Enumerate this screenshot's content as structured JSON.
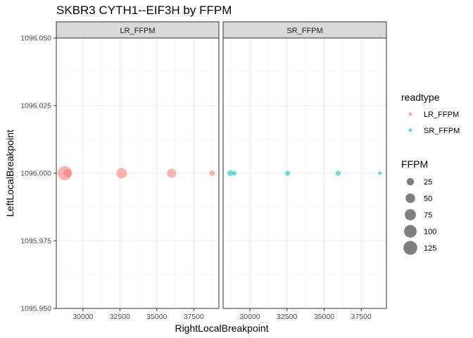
{
  "chart_data": {
    "type": "scatter",
    "title": "SKBR3 CYTH1--EIF3H by FFPM",
    "xlabel": "RightLocalBreakpoint",
    "ylabel": "LeftLocalBreakpoint",
    "xlim": [
      28200,
      39200
    ],
    "ylim": [
      1095.95,
      1096.05
    ],
    "x_ticks": [
      30000,
      32500,
      35000,
      37500
    ],
    "x_tick_labels": [
      "30000",
      "32500",
      "35000",
      "37500"
    ],
    "y_ticks": [
      1095.95,
      1095.975,
      1096.0,
      1096.025,
      1096.05
    ],
    "y_tick_labels": [
      "1095.950",
      "1095.975",
      "1096.000",
      "1096.025",
      "1096.050"
    ],
    "grid": true,
    "legend_position": "right",
    "colors": {
      "LR_FFPM": "#F8766D",
      "SR_FFPM": "#00BFC4"
    },
    "facets": [
      {
        "label": "LR_FFPM",
        "series": "LR_FFPM",
        "points": [
          {
            "x": 28760,
            "y": 1096.0,
            "ffpm": 130
          },
          {
            "x": 28980,
            "y": 1096.0,
            "ffpm": 35
          },
          {
            "x": 32620,
            "y": 1096.0,
            "ffpm": 65
          },
          {
            "x": 36000,
            "y": 1096.0,
            "ffpm": 45
          },
          {
            "x": 38750,
            "y": 1096.0,
            "ffpm": 12
          }
        ]
      },
      {
        "label": "SR_FFPM",
        "series": "SR_FFPM",
        "points": [
          {
            "x": 28680,
            "y": 1096.0,
            "ffpm": 12
          },
          {
            "x": 28950,
            "y": 1096.0,
            "ffpm": 6
          },
          {
            "x": 32550,
            "y": 1096.0,
            "ffpm": 8
          },
          {
            "x": 35950,
            "y": 1096.0,
            "ffpm": 9
          },
          {
            "x": 38750,
            "y": 1096.0,
            "ffpm": 2
          }
        ]
      }
    ],
    "legend_color": {
      "title": "readtype",
      "entries": [
        "LR_FFPM",
        "SR_FFPM"
      ]
    },
    "legend_size": {
      "title": "FFPM",
      "values": [
        25,
        50,
        75,
        100,
        125
      ]
    }
  }
}
